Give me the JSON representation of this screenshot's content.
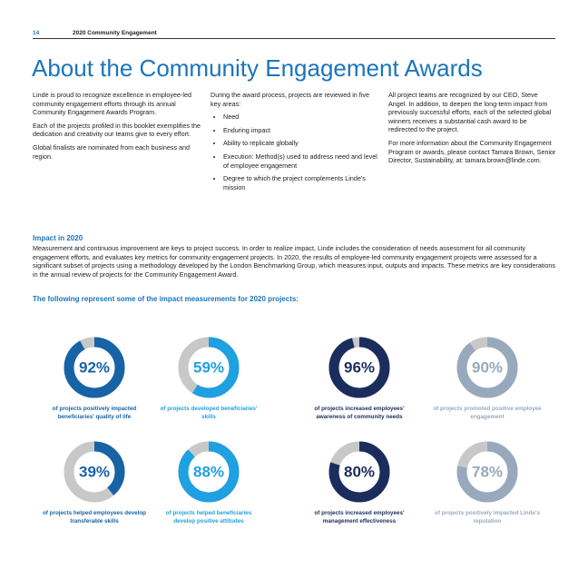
{
  "header": {
    "page_number": "14",
    "section": "2020 Community Engagement"
  },
  "title": "About the Community Engagement Awards",
  "columns": [
    {
      "paragraphs": [
        "Linde is proud to recognize excellence in employee-led community engagement efforts through its annual Community Engagement Awards Program.",
        "Each of the projects profiled in this booklet exemplifies the dedication and creativity our teams give to every effort.",
        "Global finalists are nominated from each business and region."
      ]
    },
    {
      "paragraphs": [
        "During the award process, projects are reviewed in five key areas:"
      ],
      "bullets": [
        "Need",
        "Enduring impact",
        "Ability to replicate globally",
        "Execution: Method(s) used to address need and level of employee engagement",
        "Degree to which the project complements Linde's mission"
      ]
    },
    {
      "paragraphs": [
        "All project teams are recognized by our CEO, Steve Angel. In addition, to deepen the long-term impact from previously successful efforts, each of the selected global winners receives a substantial cash award to be redirected to the project.",
        "For more information about the Community Engagement Program or awards, please contact Tamara Brown, Senior Director, Sustainability, at: tamara.brown@linde.com."
      ]
    }
  ],
  "impact": {
    "heading": "Impact in 2020",
    "text": "Measurement and continuous improvement are keys to project success. In order to realize impact, Linde includes the consideration of needs assessment for all community engagement efforts, and evaluates key metrics for community engagement projects. In 2020, the results of employee-led community engagement projects were assessed for a significant subset of projects using a methodology developed by the London Benchmarking Group, which measures input, outputs and impacts. These metrics are key considerations in the annual review of projects for the Community Engagement Award.",
    "subheading": "The following represent some of the impact measurements for 2020 projects:"
  },
  "metrics": [
    {
      "value": 92,
      "label": "92%",
      "color": "#1763a6",
      "caption": "of projects positively impacted beneficiaries' quality of life"
    },
    {
      "value": 59,
      "label": "59%",
      "color": "#1fa0e0",
      "caption": "of projects developed beneficiaries' skills"
    },
    {
      "value": 96,
      "label": "96%",
      "color": "#1b2d5c",
      "caption": "of projects increased employees' awareness of community needs"
    },
    {
      "value": 90,
      "label": "90%",
      "color": "#98a9be",
      "caption": "of projects promoted positive employee engagement"
    },
    {
      "value": 39,
      "label": "39%",
      "color": "#1763a6",
      "caption": "of projects helped employees develop transferable skills"
    },
    {
      "value": 88,
      "label": "88%",
      "color": "#1fa0e0",
      "caption": "of projects helped beneficiaries develop positive attitudes"
    },
    {
      "value": 80,
      "label": "80%",
      "color": "#1b2d5c",
      "caption": "of projects increased employees' management effectiveness"
    },
    {
      "value": 78,
      "label": "78%",
      "color": "#98a9be",
      "caption": "of projects positively impacted Linde's reputation"
    }
  ]
}
